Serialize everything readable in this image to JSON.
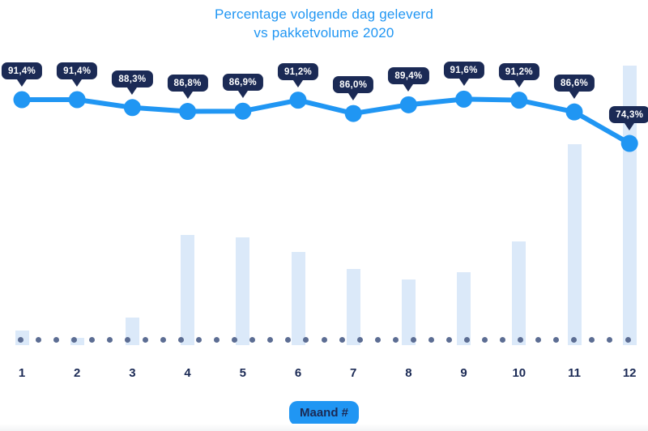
{
  "title": {
    "line1": "Percentage volgende dag geleverd",
    "line2": "vs pakketvolume 2020"
  },
  "x_axis": {
    "badge_label": "Maand #",
    "categories": [
      "1",
      "2",
      "3",
      "4",
      "5",
      "6",
      "7",
      "8",
      "9",
      "10",
      "11",
      "12"
    ]
  },
  "colors": {
    "accent_blue": "#2096f3",
    "tooltip_navy": "#1b2a55",
    "bar_light_blue": "#dbe9f9",
    "baseline_dot": "#5c6d93",
    "background": "#ffffff"
  },
  "chart_data": {
    "type": "line+bar combo",
    "title": "Percentage volgende dag geleverd vs pakketvolume 2020",
    "xlabel": "Maand #",
    "categories": [
      "1",
      "2",
      "3",
      "4",
      "5",
      "6",
      "7",
      "8",
      "9",
      "10",
      "11",
      "12"
    ],
    "grid": false,
    "legend": false,
    "baseline_style": "dotted",
    "series": [
      {
        "name": "Percentage volgende dag geleverd",
        "type": "line",
        "unit": "%",
        "values": [
          91.4,
          91.4,
          88.3,
          86.8,
          86.9,
          91.2,
          86.0,
          89.4,
          91.6,
          91.2,
          86.6,
          74.3
        ],
        "labels": [
          "91,4%",
          "91,4%",
          "88,3%",
          "86,8%",
          "86,9%",
          "91,2%",
          "86,0%",
          "89,4%",
          "91,6%",
          "91,2%",
          "86,6%",
          "74,3%"
        ]
      },
      {
        "name": "Pakketvolume 2020",
        "type": "bar",
        "unit": "relative volume index (max month = 100, no axis shown)",
        "values": [
          5.2,
          2.6,
          9.9,
          39.4,
          38.6,
          33.3,
          27.2,
          23.5,
          26.1,
          37.1,
          71.9,
          100
        ]
      }
    ]
  }
}
